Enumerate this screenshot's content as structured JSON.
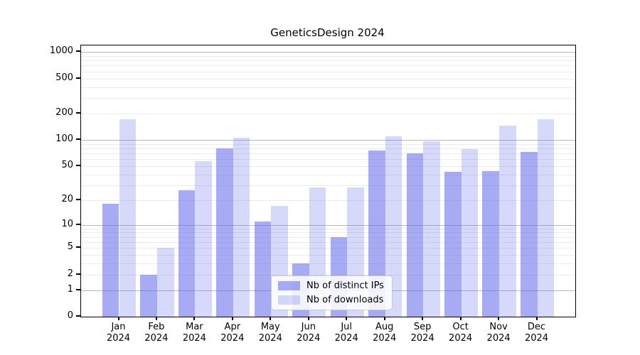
{
  "chart_data": {
    "type": "bar",
    "title": "GeneticsDesign 2024",
    "y_scale": "log1p",
    "ylim": [
      0,
      1184
    ],
    "y_ticks": [
      1000,
      500,
      200,
      100,
      50,
      20,
      10,
      5,
      2,
      1,
      0
    ],
    "grid": true,
    "legend_position": "inside lower-center",
    "categories": [
      {
        "month": "Jan",
        "year": "2024"
      },
      {
        "month": "Feb",
        "year": "2024"
      },
      {
        "month": "Mar",
        "year": "2024"
      },
      {
        "month": "Apr",
        "year": "2024"
      },
      {
        "month": "May",
        "year": "2024"
      },
      {
        "month": "Jun",
        "year": "2024"
      },
      {
        "month": "Jul",
        "year": "2024"
      },
      {
        "month": "Aug",
        "year": "2024"
      },
      {
        "month": "Sep",
        "year": "2024"
      },
      {
        "month": "Oct",
        "year": "2024"
      },
      {
        "month": "Nov",
        "year": "2024"
      },
      {
        "month": "Dec",
        "year": "2024"
      }
    ],
    "series": [
      {
        "name": "Nb of distinct IPs",
        "color": "rgba(92,102,235,0.55)",
        "values": [
          18,
          2,
          26,
          80,
          11,
          3,
          7,
          75,
          70,
          43,
          44,
          72
        ]
      },
      {
        "name": "Nb of downloads",
        "color": "rgba(92,102,235,0.25)",
        "values": [
          172,
          5,
          57,
          106,
          17,
          28,
          28,
          110,
          97,
          78,
          146,
          172
        ]
      }
    ]
  }
}
